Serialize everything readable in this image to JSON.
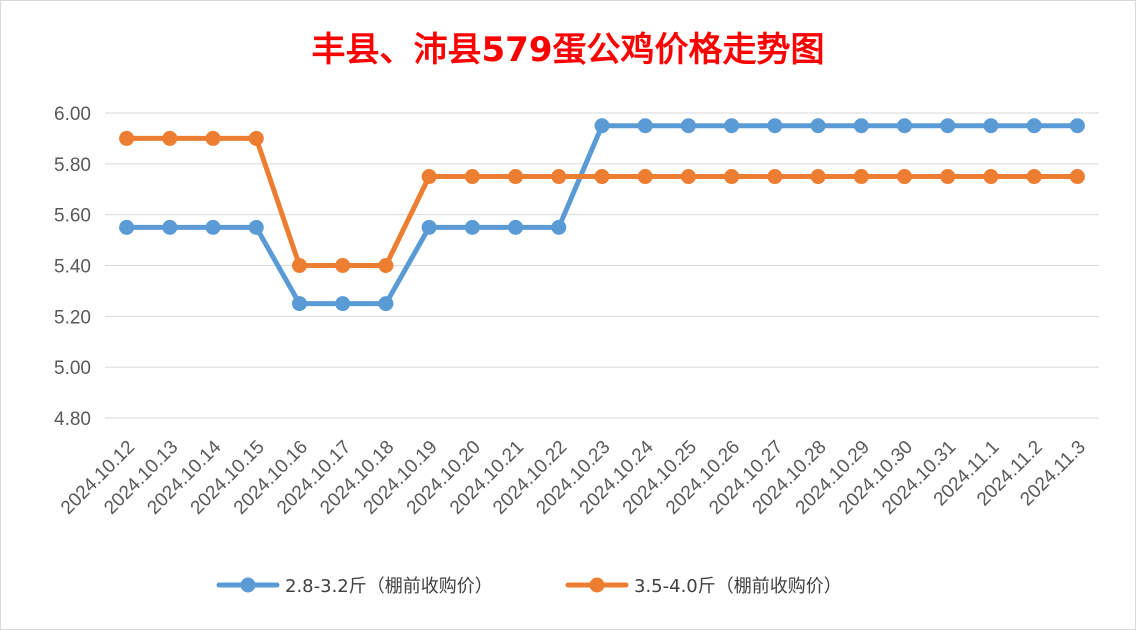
{
  "chart_data": {
    "type": "line",
    "title": "丰县、沛县579蛋公鸡价格走势图",
    "xlabel": "",
    "ylabel": "",
    "ylim": [
      4.8,
      6.0
    ],
    "yticks": [
      "6.00",
      "5.80",
      "5.60",
      "5.40",
      "5.20",
      "5.00",
      "4.80"
    ],
    "grid": true,
    "legend_position": "bottom",
    "categories": [
      "2024.10.12",
      "2024.10.13",
      "2024.10.14",
      "2024.10.15",
      "2024.10.16",
      "2024.10.17",
      "2024.10.18",
      "2024.10.19",
      "2024.10.20",
      "2024.10.21",
      "2024.10.22",
      "2024.10.23",
      "2024.10.24",
      "2024.10.25",
      "2024.10.26",
      "2024.10.27",
      "2024.10.28",
      "2024.10.29",
      "2024.10.30",
      "2024.10.31",
      "2024.11.1",
      "2024.11.2",
      "2024.11.3"
    ],
    "series": [
      {
        "name": "2.8-3.2斤（棚前收购价）",
        "color": "#5b9bd5",
        "values": [
          5.55,
          5.55,
          5.55,
          5.55,
          5.25,
          5.25,
          5.25,
          5.55,
          5.55,
          5.55,
          5.55,
          5.95,
          5.95,
          5.95,
          5.95,
          5.95,
          5.95,
          5.95,
          5.95,
          5.95,
          5.95,
          5.95,
          5.95
        ]
      },
      {
        "name": "3.5-4.0斤（棚前收购价）",
        "color": "#ed7d31",
        "values": [
          5.9,
          5.9,
          5.9,
          5.9,
          5.4,
          5.4,
          5.4,
          5.75,
          5.75,
          5.75,
          5.75,
          5.75,
          5.75,
          5.75,
          5.75,
          5.75,
          5.75,
          5.75,
          5.75,
          5.75,
          5.75,
          5.75,
          5.75
        ]
      }
    ],
    "colors": {
      "title": "#ff0000",
      "grid": "#d9d9d9",
      "tick_text": "#595959"
    }
  }
}
